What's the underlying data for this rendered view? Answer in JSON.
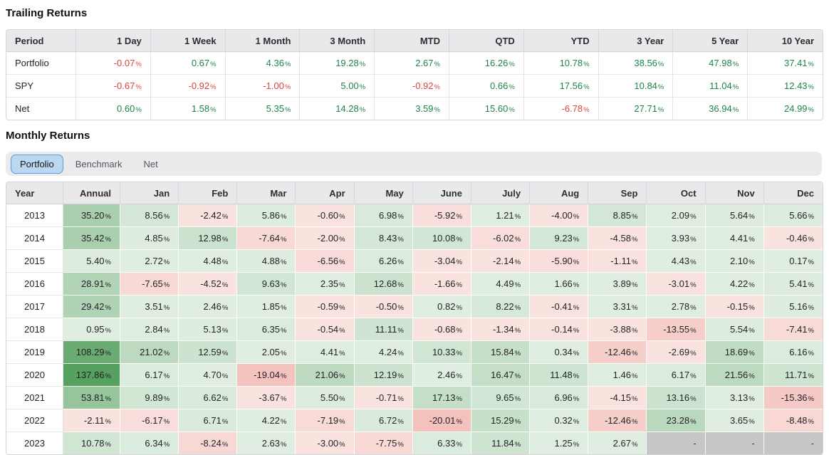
{
  "trailing": {
    "title": "Trailing Returns",
    "columns": [
      "Period",
      "1 Day",
      "1 Week",
      "1 Month",
      "3 Month",
      "MTD",
      "QTD",
      "YTD",
      "3 Year",
      "5 Year",
      "10 Year"
    ],
    "rows": [
      {
        "label": "Portfolio",
        "values": [
          -0.07,
          0.67,
          4.36,
          19.28,
          2.67,
          16.26,
          10.78,
          38.56,
          47.98,
          37.41
        ]
      },
      {
        "label": "SPY",
        "values": [
          -0.67,
          -0.92,
          -1.0,
          5.0,
          -0.92,
          0.66,
          17.56,
          10.84,
          11.04,
          12.43
        ]
      },
      {
        "label": "Net",
        "values": [
          0.6,
          1.58,
          5.35,
          14.28,
          3.59,
          15.6,
          -6.78,
          27.71,
          36.94,
          24.99
        ]
      }
    ]
  },
  "monthly": {
    "title": "Monthly Returns",
    "tabs": [
      {
        "label": "Portfolio",
        "active": true
      },
      {
        "label": "Benchmark",
        "active": false
      },
      {
        "label": "Net",
        "active": false
      }
    ],
    "columns": [
      "Year",
      "Annual",
      "Jan",
      "Feb",
      "Mar",
      "Apr",
      "May",
      "June",
      "July",
      "Aug",
      "Sep",
      "Oct",
      "Nov",
      "Dec"
    ],
    "null_display": "-",
    "rows": [
      {
        "year": "2013",
        "annual": 35.2,
        "months": [
          8.56,
          -2.42,
          5.86,
          -0.6,
          6.98,
          -5.92,
          1.21,
          -4.0,
          8.85,
          2.09,
          5.64,
          5.66
        ]
      },
      {
        "year": "2014",
        "annual": 35.42,
        "months": [
          4.85,
          12.98,
          -7.64,
          -2.0,
          8.43,
          10.08,
          -6.02,
          9.23,
          -4.58,
          3.93,
          4.41,
          -0.46
        ]
      },
      {
        "year": "2015",
        "annual": 5.4,
        "months": [
          2.72,
          4.48,
          4.88,
          -6.56,
          6.26,
          -3.04,
          -2.14,
          -5.9,
          -1.11,
          4.43,
          2.1,
          0.17
        ]
      },
      {
        "year": "2016",
        "annual": 28.91,
        "months": [
          -7.65,
          -4.52,
          9.63,
          2.35,
          12.68,
          -1.66,
          4.49,
          1.66,
          3.89,
          -3.01,
          4.22,
          5.41
        ]
      },
      {
        "year": "2017",
        "annual": 29.42,
        "months": [
          3.51,
          2.46,
          1.85,
          -0.59,
          -0.5,
          0.82,
          8.22,
          -0.41,
          3.31,
          2.78,
          -0.15,
          5.16
        ]
      },
      {
        "year": "2018",
        "annual": 0.95,
        "months": [
          2.84,
          5.13,
          6.35,
          -0.54,
          11.11,
          -0.68,
          -1.34,
          -0.14,
          -3.88,
          -13.55,
          5.54,
          -7.41
        ]
      },
      {
        "year": "2019",
        "annual": 108.29,
        "months": [
          21.02,
          12.59,
          2.05,
          4.41,
          4.24,
          10.33,
          15.84,
          0.34,
          -12.46,
          -2.69,
          18.69,
          6.16
        ]
      },
      {
        "year": "2020",
        "annual": 137.86,
        "months": [
          6.17,
          4.7,
          -19.04,
          21.06,
          12.19,
          2.46,
          16.47,
          11.48,
          1.46,
          6.17,
          21.56,
          11.71
        ]
      },
      {
        "year": "2021",
        "annual": 53.81,
        "months": [
          9.89,
          6.62,
          -3.67,
          5.5,
          -0.71,
          17.13,
          9.65,
          6.96,
          -4.15,
          13.16,
          3.13,
          -15.36
        ]
      },
      {
        "year": "2022",
        "annual": -2.11,
        "months": [
          -6.17,
          6.71,
          4.22,
          -7.19,
          6.72,
          -20.01,
          15.29,
          0.32,
          -12.46,
          23.28,
          3.65,
          -8.48
        ]
      },
      {
        "year": "2023",
        "annual": 10.78,
        "months": [
          6.34,
          -8.24,
          2.63,
          -3.0,
          -7.75,
          6.33,
          11.84,
          1.25,
          2.67,
          null,
          null,
          null
        ]
      }
    ]
  },
  "format": {
    "percent_suffix": "%"
  },
  "colors": {
    "positive_text": "#1d8449",
    "negative_text": "#d4473e",
    "green_base_rgb": [
      85,
      160,
      94
    ],
    "red_base_rgb": [
      226,
      93,
      79
    ],
    "null_cell_bg": "#c7c7c7",
    "heat_scale_max": 140,
    "heat_min_tint": 0.18
  }
}
